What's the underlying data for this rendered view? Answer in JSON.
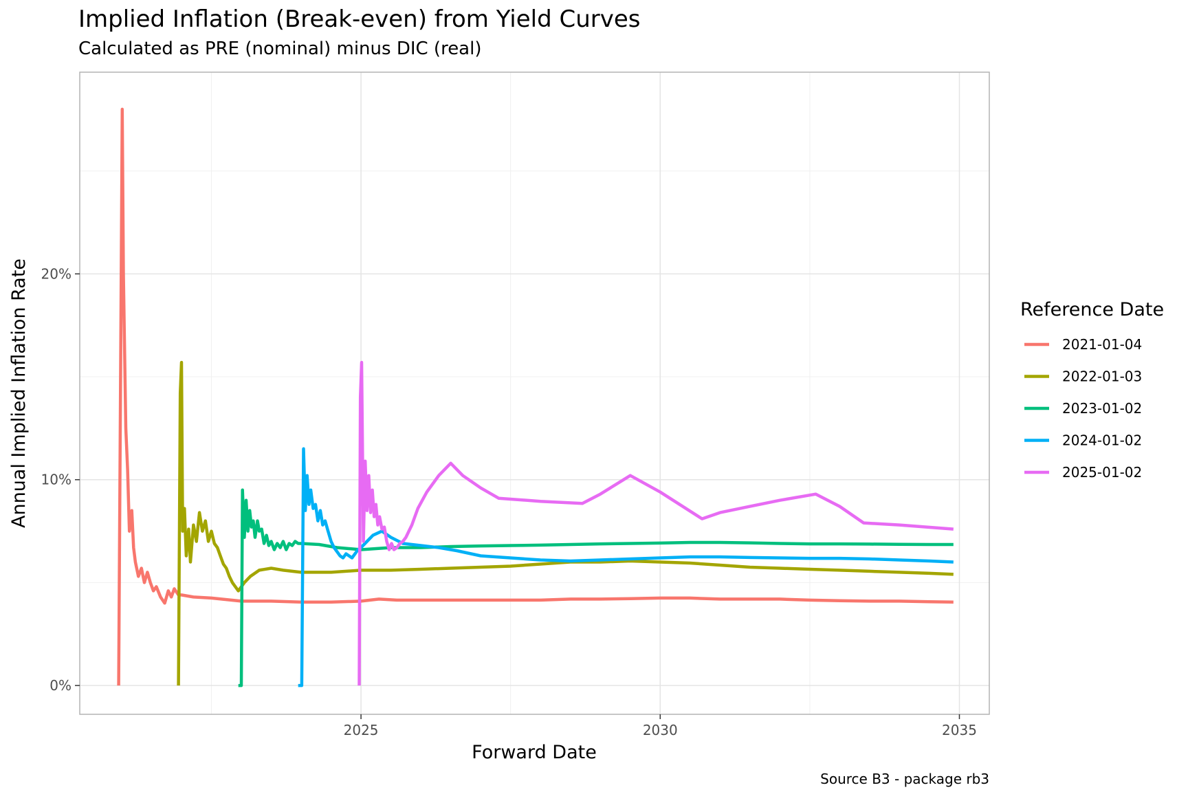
{
  "chart_data": {
    "type": "line",
    "title": "Implied Inflation (Break-even) from Yield Curves",
    "subtitle": "Calculated as PRE (nominal) minus DIC (real)",
    "xlabel": "Forward Date",
    "ylabel": "Annual Implied Inflation Rate",
    "caption": "Source B3 - package rb3",
    "legend_title": "Reference Date",
    "legend_position": "right",
    "xlim": [
      2020.3,
      2035.5
    ],
    "ylim": [
      -1.4,
      29.8
    ],
    "x_ticks": [
      2025,
      2030,
      2035
    ],
    "x_tick_labels": [
      "2025",
      "2030",
      "2035"
    ],
    "y_ticks": [
      0,
      10,
      20
    ],
    "y_tick_labels": [
      "0%",
      "10%",
      "20%"
    ],
    "grid": true,
    "series": [
      {
        "name": "2021-01-04",
        "color": "#F8766D",
        "x": [
          2020.95,
          2021.01,
          2021.03,
          2021.07,
          2021.1,
          2021.13,
          2021.17,
          2021.2,
          2021.23,
          2021.28,
          2021.33,
          2021.38,
          2021.43,
          2021.48,
          2021.53,
          2021.58,
          2021.65,
          2021.72,
          2021.78,
          2021.83,
          2021.88,
          2021.95,
          2022.0,
          2022.2,
          2022.5,
          2023.0,
          2023.5,
          2024.0,
          2024.5,
          2025.0,
          2025.3,
          2025.6,
          2026.0,
          2026.5,
          2027.0,
          2027.5,
          2028.0,
          2028.5,
          2029.0,
          2029.5,
          2030.0,
          2030.5,
          2031.0,
          2031.5,
          2032.0,
          2032.5,
          2033.0,
          2033.5,
          2034.0,
          2034.5,
          2034.9
        ],
        "y": [
          0,
          28.0,
          20.0,
          12.5,
          10.5,
          7.5,
          8.5,
          6.7,
          6.0,
          5.3,
          5.7,
          5.0,
          5.5,
          5.0,
          4.6,
          4.8,
          4.3,
          4.0,
          4.6,
          4.3,
          4.7,
          4.4,
          4.4,
          4.3,
          4.25,
          4.1,
          4.1,
          4.05,
          4.05,
          4.1,
          4.2,
          4.15,
          4.15,
          4.15,
          4.15,
          4.15,
          4.15,
          4.2,
          4.2,
          4.22,
          4.25,
          4.25,
          4.2,
          4.2,
          4.2,
          4.15,
          4.12,
          4.1,
          4.1,
          4.07,
          4.05
        ]
      },
      {
        "name": "2022-01-03",
        "color": "#A3A500",
        "x": [
          2021.95,
          2021.98,
          2022.0,
          2022.02,
          2022.05,
          2022.08,
          2022.12,
          2022.15,
          2022.2,
          2022.25,
          2022.3,
          2022.35,
          2022.4,
          2022.45,
          2022.5,
          2022.55,
          2022.6,
          2022.65,
          2022.7,
          2022.75,
          2022.8,
          2022.85,
          2022.95,
          2023.05,
          2023.15,
          2023.3,
          2023.5,
          2023.7,
          2024.0,
          2024.5,
          2025.0,
          2025.5,
          2026.0,
          2026.5,
          2027.0,
          2027.5,
          2028.0,
          2028.5,
          2029.0,
          2029.5,
          2030.0,
          2030.5,
          2031.0,
          2031.5,
          2032.0,
          2032.5,
          2033.0,
          2033.5,
          2034.0,
          2034.5,
          2034.9
        ],
        "y": [
          0,
          14.2,
          15.7,
          7.5,
          8.6,
          6.3,
          7.6,
          6.0,
          7.8,
          7.0,
          8.4,
          7.5,
          8.0,
          7.0,
          7.5,
          6.9,
          6.7,
          6.3,
          5.9,
          5.7,
          5.3,
          5.0,
          4.6,
          5.0,
          5.3,
          5.6,
          5.7,
          5.6,
          5.5,
          5.5,
          5.6,
          5.6,
          5.65,
          5.7,
          5.75,
          5.8,
          5.9,
          6.0,
          6.0,
          6.05,
          6.0,
          5.95,
          5.85,
          5.75,
          5.7,
          5.65,
          5.6,
          5.55,
          5.5,
          5.45,
          5.4
        ]
      },
      {
        "name": "2023-01-02",
        "color": "#00BF7D",
        "x": [
          2022.95,
          2023.0,
          2023.02,
          2023.05,
          2023.08,
          2023.11,
          2023.14,
          2023.17,
          2023.2,
          2023.23,
          2023.27,
          2023.3,
          2023.34,
          2023.38,
          2023.42,
          2023.46,
          2023.5,
          2023.55,
          2023.6,
          2023.65,
          2023.7,
          2023.75,
          2023.8,
          2023.85,
          2023.9,
          2023.95,
          2024.0,
          2024.3,
          2024.6,
          2025.0,
          2025.5,
          2026.0,
          2026.5,
          2027.0,
          2027.5,
          2028.0,
          2028.5,
          2029.0,
          2029.5,
          2030.0,
          2030.5,
          2031.0,
          2031.5,
          2032.0,
          2032.5,
          2033.0,
          2033.5,
          2034.0,
          2034.5,
          2034.9
        ],
        "y": [
          0,
          0,
          9.5,
          7.2,
          9.0,
          7.5,
          8.5,
          7.7,
          8.0,
          7.2,
          8.0,
          7.5,
          7.6,
          6.9,
          7.3,
          6.8,
          7.0,
          6.6,
          6.9,
          6.7,
          7.0,
          6.6,
          6.9,
          6.8,
          7.0,
          6.9,
          6.9,
          6.85,
          6.7,
          6.6,
          6.7,
          6.7,
          6.75,
          6.78,
          6.8,
          6.82,
          6.85,
          6.88,
          6.9,
          6.92,
          6.95,
          6.95,
          6.93,
          6.9,
          6.88,
          6.88,
          6.87,
          6.86,
          6.85,
          6.85
        ]
      },
      {
        "name": "2024-01-02",
        "color": "#00B0F6",
        "x": [
          2023.95,
          2024.01,
          2024.04,
          2024.07,
          2024.1,
          2024.13,
          2024.16,
          2024.2,
          2024.24,
          2024.28,
          2024.32,
          2024.36,
          2024.4,
          2024.45,
          2024.5,
          2024.55,
          2024.6,
          2024.65,
          2024.7,
          2024.75,
          2024.8,
          2024.85,
          2024.9,
          2024.95,
          2025.0,
          2025.1,
          2025.2,
          2025.35,
          2025.5,
          2025.7,
          2026.0,
          2026.3,
          2026.6,
          2027.0,
          2027.5,
          2028.0,
          2028.5,
          2029.0,
          2029.5,
          2030.0,
          2030.5,
          2031.0,
          2031.5,
          2032.0,
          2032.5,
          2033.0,
          2033.5,
          2034.0,
          2034.5,
          2034.9
        ],
        "y": [
          0,
          0,
          11.5,
          8.5,
          10.2,
          8.8,
          9.5,
          8.6,
          8.8,
          8.0,
          8.5,
          7.8,
          8.0,
          7.5,
          7.0,
          6.7,
          6.5,
          6.3,
          6.2,
          6.4,
          6.3,
          6.2,
          6.4,
          6.6,
          6.7,
          7.0,
          7.3,
          7.5,
          7.2,
          6.9,
          6.8,
          6.7,
          6.55,
          6.3,
          6.2,
          6.1,
          6.05,
          6.1,
          6.15,
          6.2,
          6.25,
          6.25,
          6.22,
          6.2,
          6.18,
          6.18,
          6.15,
          6.1,
          6.05,
          6.0
        ]
      },
      {
        "name": "2025-01-02",
        "color": "#E76BF3",
        "x": [
          2024.97,
          2024.99,
          2025.01,
          2025.04,
          2025.07,
          2025.1,
          2025.13,
          2025.16,
          2025.19,
          2025.22,
          2025.25,
          2025.28,
          2025.31,
          2025.35,
          2025.39,
          2025.43,
          2025.47,
          2025.51,
          2025.55,
          2025.6,
          2025.65,
          2025.7,
          2025.75,
          2025.8,
          2025.85,
          2025.9,
          2025.95,
          2026.1,
          2026.3,
          2026.5,
          2026.7,
          2027.0,
          2027.3,
          2028.0,
          2028.7,
          2029.0,
          2029.5,
          2030.0,
          2030.7,
          2031.0,
          2031.5,
          2032.0,
          2032.6,
          2033.0,
          2033.4,
          2034.0,
          2034.9
        ],
        "y": [
          0,
          14.0,
          15.7,
          7.0,
          10.9,
          8.5,
          10.2,
          8.4,
          9.5,
          8.2,
          8.8,
          7.8,
          8.2,
          7.6,
          7.7,
          7.0,
          6.6,
          6.9,
          6.6,
          6.7,
          6.9,
          7.0,
          7.2,
          7.5,
          7.8,
          8.2,
          8.6,
          9.4,
          10.2,
          10.8,
          10.2,
          9.6,
          9.1,
          8.95,
          8.85,
          9.3,
          10.2,
          9.4,
          8.1,
          8.4,
          8.7,
          9.0,
          9.3,
          8.7,
          7.9,
          7.8,
          7.6
        ]
      }
    ]
  }
}
